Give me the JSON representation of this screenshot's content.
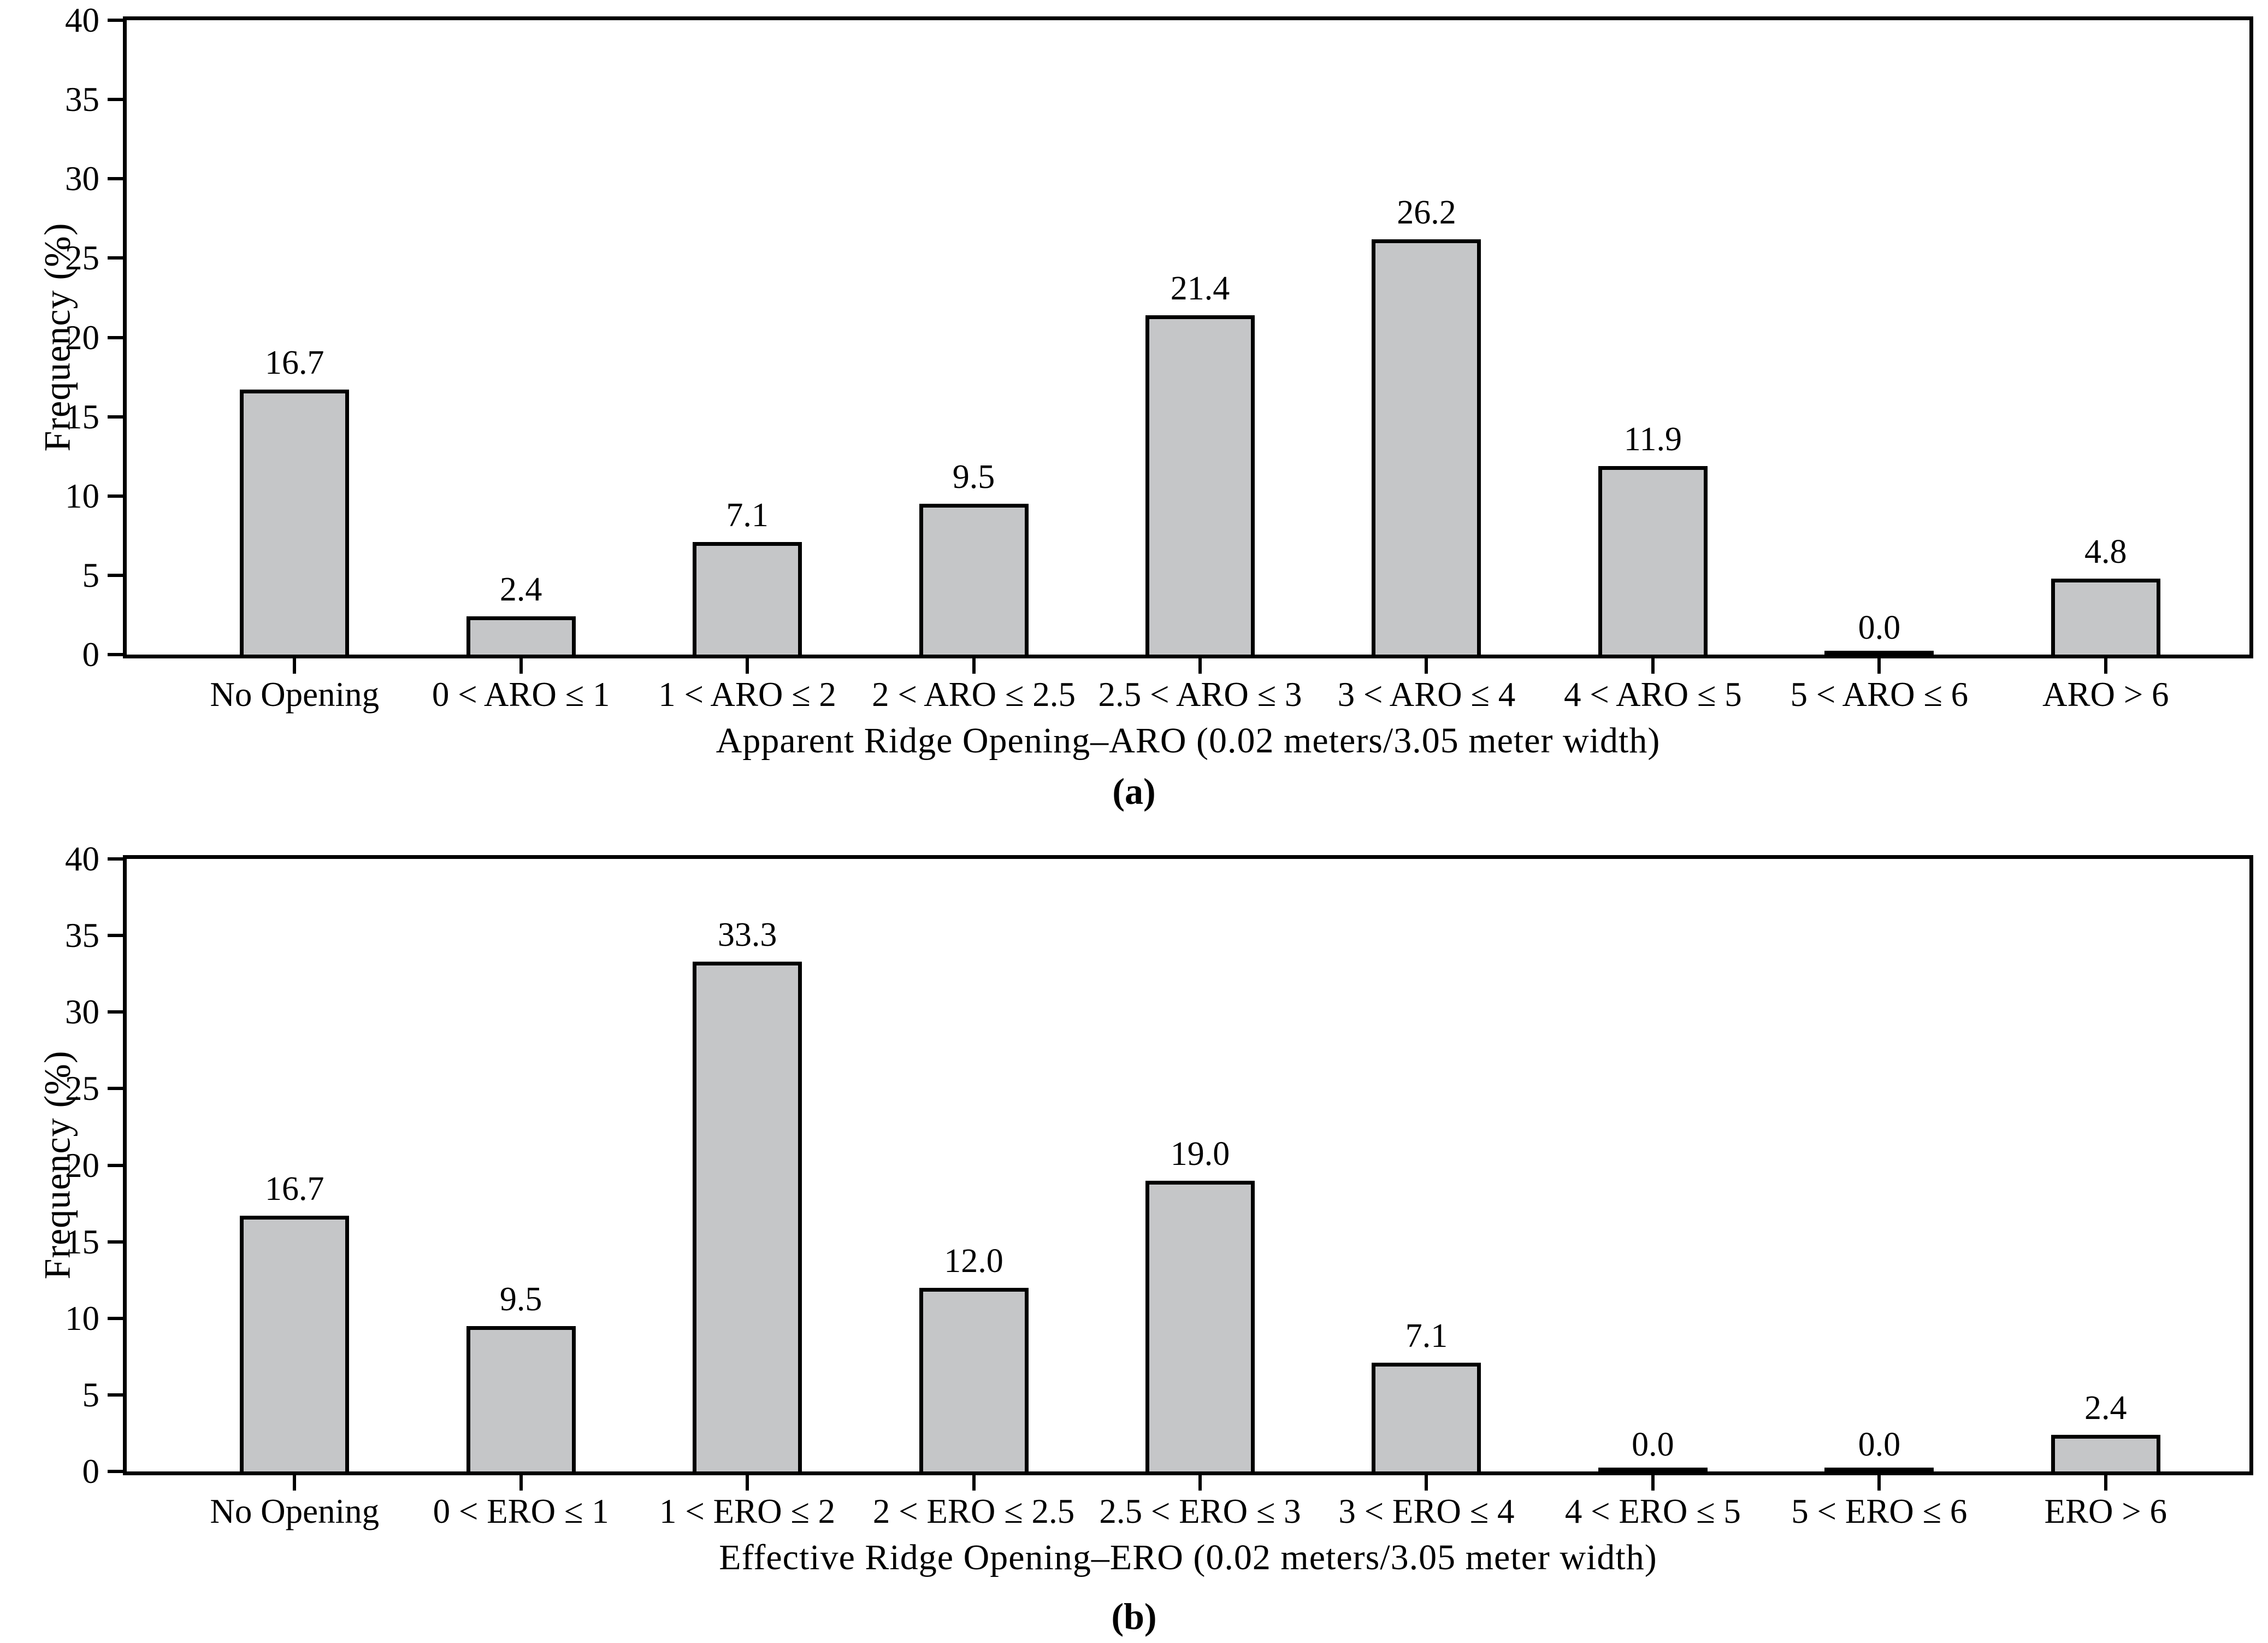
{
  "figure": {
    "background": "#ffffff",
    "text_color": "#000000",
    "bar_fill": "#c5c6c8",
    "bar_border": "#000000"
  },
  "chart_data": [
    {
      "type": "bar",
      "panel": "a",
      "caption": "(a)",
      "ylabel": "Frequency (%)",
      "xlabel": "Apparent Ridge Opening–ARO (0.02 meters/3.05 meter width)",
      "ylim": [
        0,
        40
      ],
      "yticks": [
        0,
        5,
        10,
        15,
        20,
        25,
        30,
        35,
        40
      ],
      "grid": false,
      "legend": null,
      "categories": [
        "No Opening",
        "0 < ARO ≤ 1",
        "1 < ARO ≤ 2",
        "2 < ARO ≤ 2.5",
        "2.5 < ARO ≤ 3",
        "3 < ARO ≤ 4",
        "4 < ARO ≤ 5",
        "5 < ARO ≤ 6",
        "ARO > 6"
      ],
      "values": [
        16.7,
        2.4,
        7.1,
        9.5,
        21.4,
        26.2,
        11.9,
        0.0,
        4.8
      ],
      "value_labels": [
        "16.7",
        "2.4",
        "7.1",
        "9.5",
        "21.4",
        "26.2",
        "11.9",
        "0.0",
        "4.8"
      ]
    },
    {
      "type": "bar",
      "panel": "b",
      "caption": "(b)",
      "ylabel": "Frequency (%)",
      "xlabel": "Effective Ridge Opening–ERO (0.02 meters/3.05 meter width)",
      "ylim": [
        0,
        40
      ],
      "yticks": [
        0,
        5,
        10,
        15,
        20,
        25,
        30,
        35,
        40
      ],
      "grid": false,
      "legend": null,
      "categories": [
        "No Opening",
        "0 < ERO ≤ 1",
        "1 < ERO ≤ 2",
        "2 < ERO ≤ 2.5",
        "2.5 < ERO ≤ 3",
        "3 < ERO ≤ 4",
        "4 < ERO ≤ 5",
        "5 < ERO ≤ 6",
        "ERO > 6"
      ],
      "values": [
        16.7,
        9.5,
        33.3,
        12.0,
        19.0,
        7.1,
        0.0,
        0.0,
        2.4
      ],
      "value_labels": [
        "16.7",
        "9.5",
        "33.3",
        "12.0",
        "19.0",
        "7.1",
        "0.0",
        "0.0",
        "2.4"
      ]
    }
  ]
}
